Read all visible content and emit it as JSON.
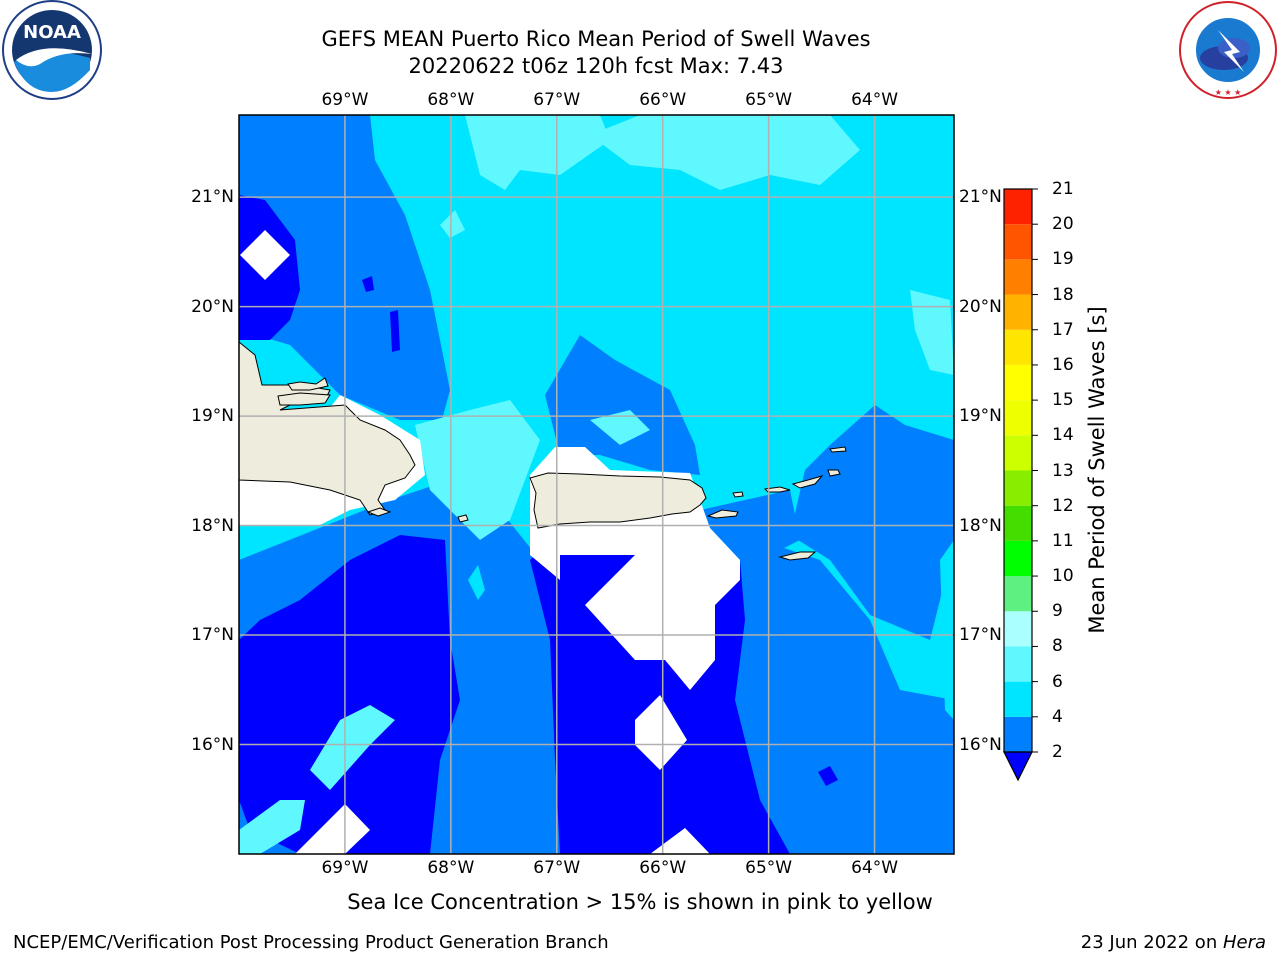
{
  "header": {
    "title_line1": "GEFS MEAN Puerto Rico Mean Period of Swell Waves",
    "title_line2": "20220622 t06z 120h fcst   Max: 7.43"
  },
  "logos": {
    "left": {
      "name": "noaa-logo",
      "text": "NOAA",
      "ring_text": "NATIONAL OCEANIC AND ATMOSPHERIC ADMINISTRATION · U.S. DEPARTMENT OF COMMERCE"
    },
    "right": {
      "name": "nws-logo",
      "ring_text": "NATIONAL WEATHER SERVICE"
    }
  },
  "map": {
    "lon_ticks": [
      "69°W",
      "68°W",
      "67°W",
      "66°W",
      "65°W",
      "64°W"
    ],
    "lat_ticks": [
      "21°N",
      "20°N",
      "19°N",
      "18°N",
      "17°N",
      "16°N"
    ],
    "lon_values": [
      -69,
      -68,
      -67,
      -66,
      -65,
      -64
    ],
    "lat_values": [
      21,
      20,
      19,
      18,
      17,
      16
    ],
    "extent": {
      "lon_min": -70,
      "lon_max": -63.25,
      "lat_min": 15,
      "lat_max": 21.75
    },
    "land_color": "#eeeddd",
    "grid_color": "#b0b0b0"
  },
  "colorbar": {
    "label": "Mean Period of Swell Waves [s]",
    "tick_labels": [
      "2",
      "4",
      "6",
      "8",
      "9",
      "10",
      "11",
      "12",
      "13",
      "14",
      "15",
      "16",
      "17",
      "18",
      "19",
      "20",
      "21"
    ],
    "levels": [
      2,
      4,
      6,
      8,
      9,
      10,
      11,
      12,
      13,
      14,
      15,
      16,
      17,
      18,
      19,
      20,
      21
    ],
    "colors": [
      "#0080ff",
      "#00e5ff",
      "#5ff8ff",
      "#aaffff",
      "#5ef080",
      "#00ff00",
      "#44dd00",
      "#88ee00",
      "#ccff00",
      "#eeff00",
      "#ffff00",
      "#ffe600",
      "#ffb300",
      "#ff8000",
      "#ff5500",
      "#ff2200",
      "#ff0000"
    ],
    "extend_below_color": "#0000ff"
  },
  "field_colors": {
    "lt2": "#0000ff",
    "c2_4": "#0080ff",
    "c4_6": "#00e5ff",
    "c6_8": "#5ff8ff"
  },
  "caption": "Sea Ice Concentration > 15% is shown in pink to yellow",
  "footer": {
    "left": "NCEP/EMC/Verification Post Processing Product Generation Branch",
    "right_date": "23 Jun 2022 on ",
    "right_machine": "Hera"
  }
}
